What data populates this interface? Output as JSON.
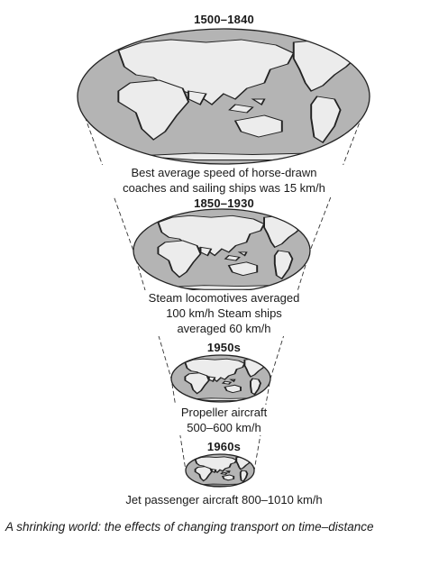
{
  "colors": {
    "ocean": "#b4b4b4",
    "land": "#ececec",
    "outline": "#222222",
    "cone": "#333333"
  },
  "eras": [
    {
      "period": "1500–1840",
      "description": [
        "Best average speed of horse-drawn",
        "coaches and sailing ships was 15 km/h"
      ]
    },
    {
      "period": "1850–1930",
      "description": [
        "Steam locomotives averaged",
        "100 km/h Steam ships",
        "averaged 60 km/h"
      ]
    },
    {
      "period": "1950s",
      "description": [
        "Propeller aircraft",
        "500–600 km/h"
      ]
    },
    {
      "period": "1960s",
      "description": [
        "Jet passenger aircraft 800–1010 km/h"
      ]
    }
  ],
  "caption": "A shrinking world: the effects of changing transport on time–distance"
}
